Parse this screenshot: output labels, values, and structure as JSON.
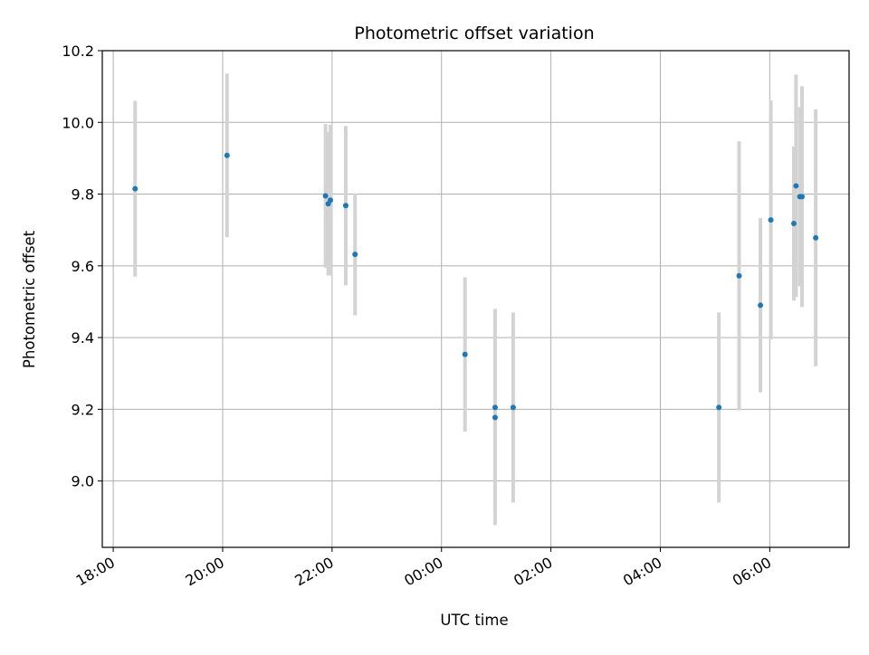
{
  "chart_data": {
    "type": "scatter",
    "title": "Photometric offset variation",
    "xlabel": "UTC time",
    "ylabel": "Photometric offset",
    "xlim_hours": [
      17.8,
      31.45
    ],
    "ylim": [
      8.815,
      10.2
    ],
    "grid": true,
    "xticks": [
      {
        "value": 18,
        "label": "18:00"
      },
      {
        "value": 20,
        "label": "20:00"
      },
      {
        "value": 22,
        "label": "22:00"
      },
      {
        "value": 24,
        "label": "00:00"
      },
      {
        "value": 26,
        "label": "02:00"
      },
      {
        "value": 28,
        "label": "04:00"
      },
      {
        "value": 30,
        "label": "06:00"
      }
    ],
    "yticks": [
      {
        "value": 9.0,
        "label": "9.0"
      },
      {
        "value": 9.2,
        "label": "9.2"
      },
      {
        "value": 9.4,
        "label": "9.4"
      },
      {
        "value": 9.6,
        "label": "9.6"
      },
      {
        "value": 9.8,
        "label": "9.8"
      },
      {
        "value": 10.0,
        "label": "10.0"
      },
      {
        "value": 10.2,
        "label": "10.2"
      }
    ],
    "series": [
      {
        "marker_color": "#1f77b4",
        "errorbar_color": "#d3d3d3",
        "points": [
          {
            "x": 18.4,
            "y": 9.815,
            "yerr": 0.245
          },
          {
            "x": 20.08,
            "y": 9.908,
            "yerr": 0.228
          },
          {
            "x": 21.88,
            "y": 9.795,
            "yerr": 0.2
          },
          {
            "x": 21.93,
            "y": 9.773,
            "yerr": 0.2
          },
          {
            "x": 21.97,
            "y": 9.783,
            "yerr": 0.21
          },
          {
            "x": 22.25,
            "y": 9.768,
            "yerr": 0.222
          },
          {
            "x": 22.42,
            "y": 9.632,
            "yerr": 0.17
          },
          {
            "x": 24.43,
            "y": 9.353,
            "yerr": 0.215
          },
          {
            "x": 24.98,
            "y": 9.205,
            "yerr": 0.275
          },
          {
            "x": 24.98,
            "y": 9.177,
            "yerr": 0.3
          },
          {
            "x": 25.31,
            "y": 9.205,
            "yerr": 0.265
          },
          {
            "x": 29.07,
            "y": 9.205,
            "yerr": 0.265
          },
          {
            "x": 29.44,
            "y": 9.572,
            "yerr": 0.375
          },
          {
            "x": 29.83,
            "y": 9.49,
            "yerr": 0.243
          },
          {
            "x": 30.02,
            "y": 9.728,
            "yerr": 0.333
          },
          {
            "x": 30.44,
            "y": 9.718,
            "yerr": 0.215
          },
          {
            "x": 30.48,
            "y": 9.823,
            "yerr": 0.31
          },
          {
            "x": 30.55,
            "y": 9.793,
            "yerr": 0.25
          },
          {
            "x": 30.59,
            "y": 9.793,
            "yerr": 0.308
          },
          {
            "x": 30.84,
            "y": 9.678,
            "yerr": 0.358
          }
        ]
      }
    ]
  }
}
